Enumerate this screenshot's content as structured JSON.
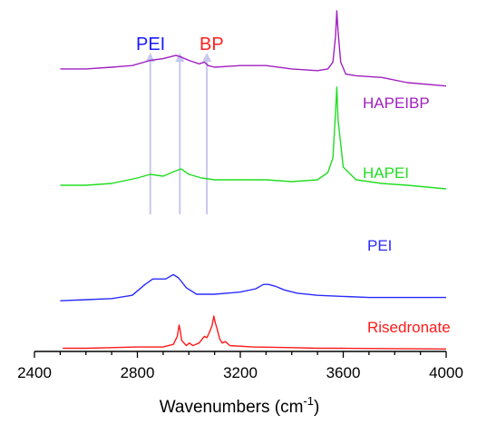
{
  "chart_data": {
    "type": "line",
    "xlabel_main": "Wavenumbers (cm",
    "xlabel_sup": "-1",
    "xlabel_end": ")",
    "xlim": [
      2400,
      4000
    ],
    "xticks": [
      2400,
      2800,
      3200,
      3600,
      4000
    ],
    "grid": false,
    "annotations": [
      {
        "text": "PEI",
        "color": "#1a1aff"
      },
      {
        "text": "BP",
        "color": "#ff2020"
      }
    ],
    "marker_lines_x": [
      2850,
      2965,
      3070
    ],
    "series": [
      {
        "name": "HAPEIBP",
        "color": "#a020c0",
        "x": [
          2500,
          2600,
          2700,
          2780,
          2850,
          2900,
          2950,
          2970,
          3000,
          3040,
          3060,
          3075,
          3100,
          3200,
          3300,
          3400,
          3500,
          3540,
          3560,
          3570,
          3575,
          3580,
          3590,
          3610,
          3650,
          3750,
          3850,
          4000
        ],
        "values": [
          0.66,
          0.66,
          0.67,
          0.68,
          0.71,
          0.72,
          0.74,
          0.73,
          0.71,
          0.69,
          0.7,
          0.68,
          0.67,
          0.68,
          0.68,
          0.66,
          0.65,
          0.66,
          0.7,
          0.85,
          1.0,
          0.88,
          0.7,
          0.63,
          0.62,
          0.61,
          0.58,
          0.56
        ]
      },
      {
        "name": "HAPEI",
        "color": "#22dd22",
        "x": [
          2500,
          2600,
          2700,
          2800,
          2850,
          2900,
          2950,
          2970,
          3000,
          3050,
          3100,
          3200,
          3300,
          3400,
          3500,
          3540,
          3560,
          3570,
          3575,
          3580,
          3600,
          3650,
          3750,
          3850,
          4000
        ],
        "values": [
          0.4,
          0.4,
          0.41,
          0.44,
          0.46,
          0.45,
          0.48,
          0.49,
          0.46,
          0.44,
          0.43,
          0.43,
          0.43,
          0.42,
          0.43,
          0.47,
          0.55,
          0.8,
          0.94,
          0.76,
          0.5,
          0.43,
          0.41,
          0.4,
          0.38
        ]
      },
      {
        "name": "PEI",
        "color": "#2b2bff",
        "x": [
          2500,
          2600,
          2700,
          2780,
          2830,
          2860,
          2880,
          2910,
          2940,
          2960,
          2990,
          3030,
          3100,
          3200,
          3260,
          3290,
          3310,
          3340,
          3370,
          3420,
          3500,
          3600,
          3700,
          3800,
          4000
        ],
        "values": [
          0.14,
          0.15,
          0.16,
          0.19,
          0.29,
          0.34,
          0.34,
          0.34,
          0.38,
          0.35,
          0.26,
          0.2,
          0.2,
          0.22,
          0.25,
          0.29,
          0.29,
          0.27,
          0.24,
          0.21,
          0.19,
          0.18,
          0.17,
          0.17,
          0.17
        ]
      },
      {
        "name": "Risedronate",
        "color": "#ff1a1a",
        "x": [
          2510,
          2600,
          2700,
          2800,
          2900,
          2940,
          2955,
          2962,
          2966,
          2972,
          2990,
          3002,
          3015,
          3040,
          3060,
          3070,
          3080,
          3090,
          3097,
          3103,
          3108,
          3120,
          3130,
          3142,
          3160,
          3250,
          3400,
          3500,
          3600,
          4000
        ],
        "values": [
          0.01,
          0.01,
          0.015,
          0.02,
          0.02,
          0.04,
          0.1,
          0.185,
          0.15,
          0.07,
          0.03,
          0.05,
          0.03,
          0.05,
          0.1,
          0.09,
          0.13,
          0.18,
          0.253,
          0.2,
          0.17,
          0.08,
          0.05,
          0.06,
          0.03,
          0.02,
          0.015,
          0.01,
          0.01,
          0.005
        ]
      }
    ]
  }
}
